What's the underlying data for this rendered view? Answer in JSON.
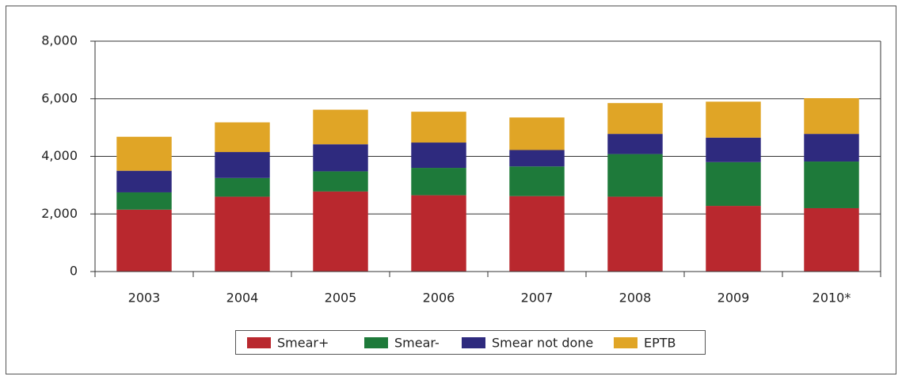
{
  "chart_data": {
    "type": "bar",
    "stacked": true,
    "categories": [
      "2003",
      "2004",
      "2005",
      "2006",
      "2007",
      "2008",
      "2009",
      "2010*"
    ],
    "series": [
      {
        "name": "Smear+",
        "color": "#b9282e",
        "values": [
          2150,
          2600,
          2780,
          2650,
          2620,
          2600,
          2280,
          2200
        ]
      },
      {
        "name": "Smear-",
        "color": "#1e7a3a",
        "values": [
          600,
          650,
          700,
          950,
          1030,
          1480,
          1520,
          1620
        ]
      },
      {
        "name": "Smear not done",
        "color": "#2e2a7e",
        "values": [
          750,
          900,
          940,
          880,
          570,
          700,
          850,
          960
        ]
      },
      {
        "name": "EPTB",
        "color": "#e0a526",
        "values": [
          1180,
          1030,
          1200,
          1070,
          1130,
          1070,
          1250,
          1240
        ]
      }
    ],
    "ylim": [
      0,
      8000
    ],
    "yticks": [
      0,
      {
        "value": 2000,
        "label": "2,000"
      },
      {
        "value": 4000,
        "label": "4,000"
      },
      {
        "value": 6000,
        "label": "6,000"
      },
      {
        "value": 8000,
        "label": "8,000"
      }
    ],
    "grid": true,
    "legend": "bottom"
  }
}
